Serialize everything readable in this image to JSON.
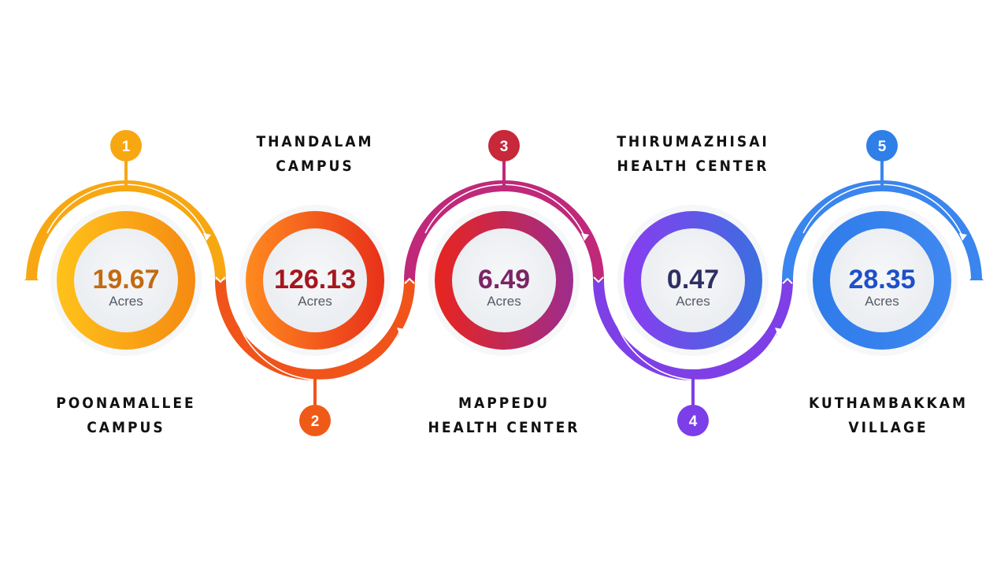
{
  "steps": [
    {
      "number": "1",
      "value": "19.67",
      "unit": "Acres",
      "label_line1": "POONAMALLEE",
      "label_line2": "CAMPUS",
      "colors": {
        "primary": "#F7A712",
        "secondary": "#FFC21A",
        "value": "#C26B12"
      }
    },
    {
      "number": "2",
      "value": "126.13",
      "unit": "Acres",
      "label_line1": "THANDALAM",
      "label_line2": "CAMPUS",
      "colors": {
        "primary": "#F04E13",
        "secondary": "#FF7A1F",
        "value": "#A5171D"
      }
    },
    {
      "number": "3",
      "value": "6.49",
      "unit": "Acres",
      "label_line1": "MAPPEDU",
      "label_line2": "HEALTH CENTER",
      "colors": {
        "primary": "#B5245C",
        "secondary": "#E52B2B",
        "value": "#7B2466"
      }
    },
    {
      "number": "4",
      "value": "0.47",
      "unit": "Acres",
      "label_line1": "THIRUMAZHISAI",
      "label_line2": "HEALTH CENTER",
      "colors": {
        "primary": "#7B3EE8",
        "secondary": "#9B45E6",
        "value": "#2F2F63"
      }
    },
    {
      "number": "5",
      "value": "28.35",
      "unit": "Acres",
      "label_line1": "KUTHAMBAKKAM",
      "label_line2": "VILLAGE",
      "colors": {
        "primary": "#2F7FE8",
        "secondary": "#4C8EF2",
        "value": "#1E50C8"
      }
    }
  ]
}
